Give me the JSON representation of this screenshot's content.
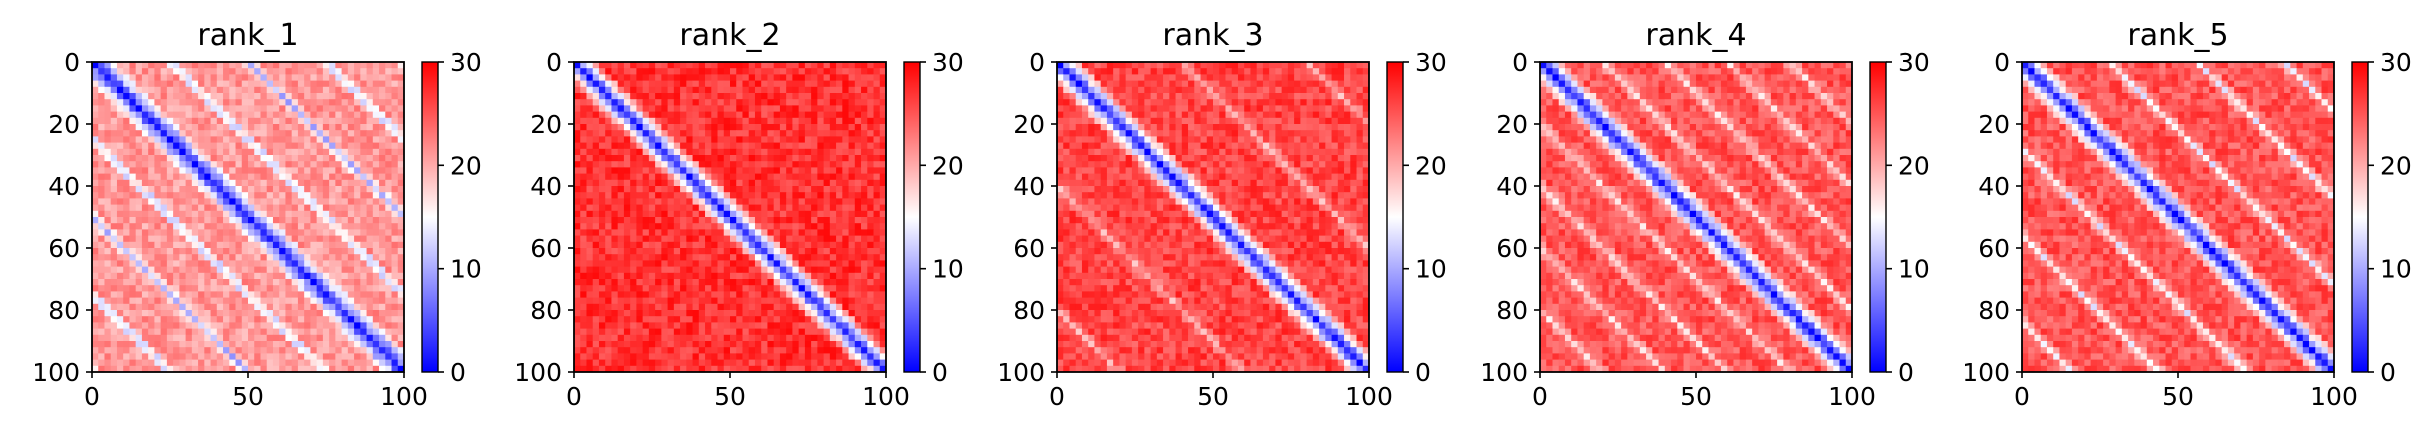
{
  "chart_data": [
    {
      "type": "heatmap",
      "title": "rank_1",
      "x_range": [
        0,
        100
      ],
      "y_range": [
        0,
        100
      ],
      "x_ticks": [
        "0",
        "50",
        "100"
      ],
      "y_ticks": [
        "0",
        "20",
        "40",
        "60",
        "80",
        "100"
      ],
      "colorbar": {
        "min": 0,
        "max": 30,
        "ticks": [
          "0",
          "10",
          "20",
          "30"
        ],
        "colormap": "bwr"
      },
      "pattern": {
        "diagonal_value": 2,
        "background_value": 21,
        "secondary_band_spacing": 25,
        "secondary_band_value": 11
      }
    },
    {
      "type": "heatmap",
      "title": "rank_2",
      "x_range": [
        0,
        100
      ],
      "y_range": [
        0,
        100
      ],
      "x_ticks": [
        "0",
        "50",
        "100"
      ],
      "y_ticks": [
        "0",
        "20",
        "40",
        "60",
        "80",
        "100"
      ],
      "colorbar": {
        "min": 0,
        "max": 30,
        "ticks": [
          "0",
          "10",
          "20",
          "30"
        ],
        "colormap": "bwr"
      },
      "pattern": {
        "diagonal_value": 2,
        "background_value": 27,
        "secondary_band_spacing": 0,
        "secondary_band_value": 27
      }
    },
    {
      "type": "heatmap",
      "title": "rank_3",
      "x_range": [
        0,
        100
      ],
      "y_range": [
        0,
        100
      ],
      "x_ticks": [
        "0",
        "50",
        "100"
      ],
      "y_ticks": [
        "0",
        "20",
        "40",
        "60",
        "80",
        "100"
      ],
      "colorbar": {
        "min": 0,
        "max": 30,
        "ticks": [
          "0",
          "10",
          "20",
          "30"
        ],
        "colormap": "bwr"
      },
      "pattern": {
        "diagonal_value": 2,
        "background_value": 26,
        "secondary_band_spacing": 40,
        "secondary_band_value": 20
      }
    },
    {
      "type": "heatmap",
      "title": "rank_4",
      "x_range": [
        0,
        100
      ],
      "y_range": [
        0,
        100
      ],
      "x_ticks": [
        "0",
        "50",
        "100"
      ],
      "y_ticks": [
        "0",
        "20",
        "40",
        "60",
        "80",
        "100"
      ],
      "colorbar": {
        "min": 0,
        "max": 30,
        "ticks": [
          "0",
          "10",
          "20",
          "30"
        ],
        "colormap": "bwr"
      },
      "pattern": {
        "diagonal_value": 2,
        "background_value": 25,
        "secondary_band_spacing": 20,
        "secondary_band_value": 18
      }
    },
    {
      "type": "heatmap",
      "title": "rank_5",
      "x_range": [
        0,
        100
      ],
      "y_range": [
        0,
        100
      ],
      "x_ticks": [
        "0",
        "50",
        "100"
      ],
      "y_ticks": [
        "0",
        "20",
        "40",
        "60",
        "80",
        "100"
      ],
      "colorbar": {
        "min": 0,
        "max": 30,
        "ticks": [
          "0",
          "10",
          "20",
          "30"
        ],
        "colormap": "bwr"
      },
      "pattern": {
        "diagonal_value": 2,
        "background_value": 25,
        "secondary_band_spacing": 28,
        "secondary_band_value": 15
      }
    }
  ]
}
